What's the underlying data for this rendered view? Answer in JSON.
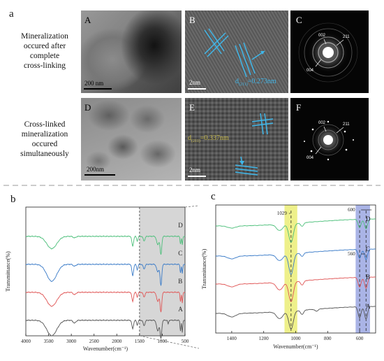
{
  "figure": {
    "panel_a_label": "a",
    "panel_b_label": "b",
    "panel_c_label": "c",
    "row1_caption": [
      "Mineralization",
      "occured after",
      "complete",
      "cross-linking"
    ],
    "row2_caption": [
      "Cross-linked",
      "mineralization",
      "occured",
      "simultaneously"
    ],
    "tem": {
      "A": {
        "letter": "A",
        "scale": "200  nm"
      },
      "B": {
        "letter": "B",
        "scale": "2nm",
        "d_label": "d",
        "d_sub": "(211)",
        "d_value": "=0.273nm"
      },
      "C": {
        "letter": "C",
        "rings": [
          "002",
          "211",
          "004"
        ]
      },
      "D": {
        "letter": "D",
        "scale": "200nm"
      },
      "E": {
        "letter": "E",
        "scale": "2nm",
        "d_label": "d",
        "d_sub": "(211)",
        "d_value": "=0.337nm"
      },
      "F": {
        "letter": "F",
        "rings": [
          "002",
          "211",
          "004"
        ]
      }
    }
  },
  "chart_data": [
    {
      "type": "line",
      "panel": "b",
      "xlabel": "Wavenumber(cm⁻¹)",
      "ylabel": "Transmittance(%)",
      "xlim": [
        4000,
        500
      ],
      "x_ticks": [
        4000,
        3500,
        3000,
        2500,
        2000,
        1500,
        1000,
        500
      ],
      "shaded_region": [
        1500,
        500
      ],
      "series": [
        {
          "name": "A",
          "color": "#555555"
        },
        {
          "name": "B",
          "color": "#e05555"
        },
        {
          "name": "C",
          "color": "#3a7bc8"
        },
        {
          "name": "D",
          "color": "#4cbf7a"
        }
      ]
    },
    {
      "type": "line",
      "panel": "c",
      "xlabel": "Wavenumber(cm⁻¹)",
      "ylabel": "Transmittance(%)",
      "xlim": [
        1500,
        500
      ],
      "x_ticks": [
        1400,
        1200,
        1000,
        800,
        600
      ],
      "annotations": [
        "1029",
        "600",
        "560"
      ],
      "highlight_bands": [
        {
          "center": 1029,
          "color": "#eef08a"
        },
        {
          "center": 580,
          "color": "#aab4e6"
        }
      ],
      "series": [
        {
          "name": "A",
          "color": "#555555"
        },
        {
          "name": "B",
          "color": "#e05555"
        },
        {
          "name": "C",
          "color": "#3a7bc8"
        },
        {
          "name": "D",
          "color": "#4cbf7a"
        }
      ]
    }
  ]
}
